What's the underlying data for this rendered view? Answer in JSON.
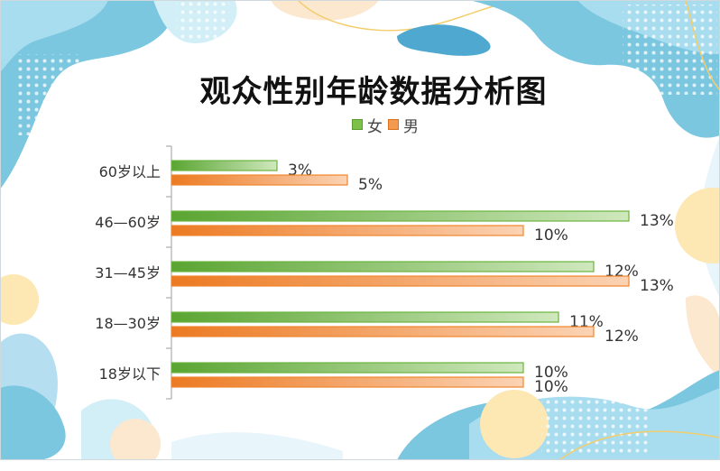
{
  "title": "观众性别年龄数据分析图",
  "legend": [
    {
      "name": "女",
      "color": "#6cb33f"
    },
    {
      "name": "男",
      "color": "#f0852d"
    }
  ],
  "chart_data": {
    "type": "bar",
    "orientation": "horizontal",
    "title": "观众性别年龄数据分析图",
    "categories": [
      "60岁以上",
      "46—60岁",
      "31—45岁",
      "18—30岁",
      "18岁以下"
    ],
    "series": [
      {
        "name": "女",
        "values": [
          3,
          13,
          12,
          11,
          10
        ],
        "labels": [
          "3%",
          "13%",
          "12%",
          "11%",
          "10%"
        ],
        "color": "#6cb33f"
      },
      {
        "name": "男",
        "values": [
          5,
          10,
          13,
          12,
          10
        ],
        "labels": [
          "5%",
          "10%",
          "13%",
          "12%",
          "10%"
        ],
        "color": "#f0852d"
      }
    ],
    "xlim": [
      0,
      13
    ],
    "unit": "%",
    "grid": false,
    "legend_position": "top"
  }
}
